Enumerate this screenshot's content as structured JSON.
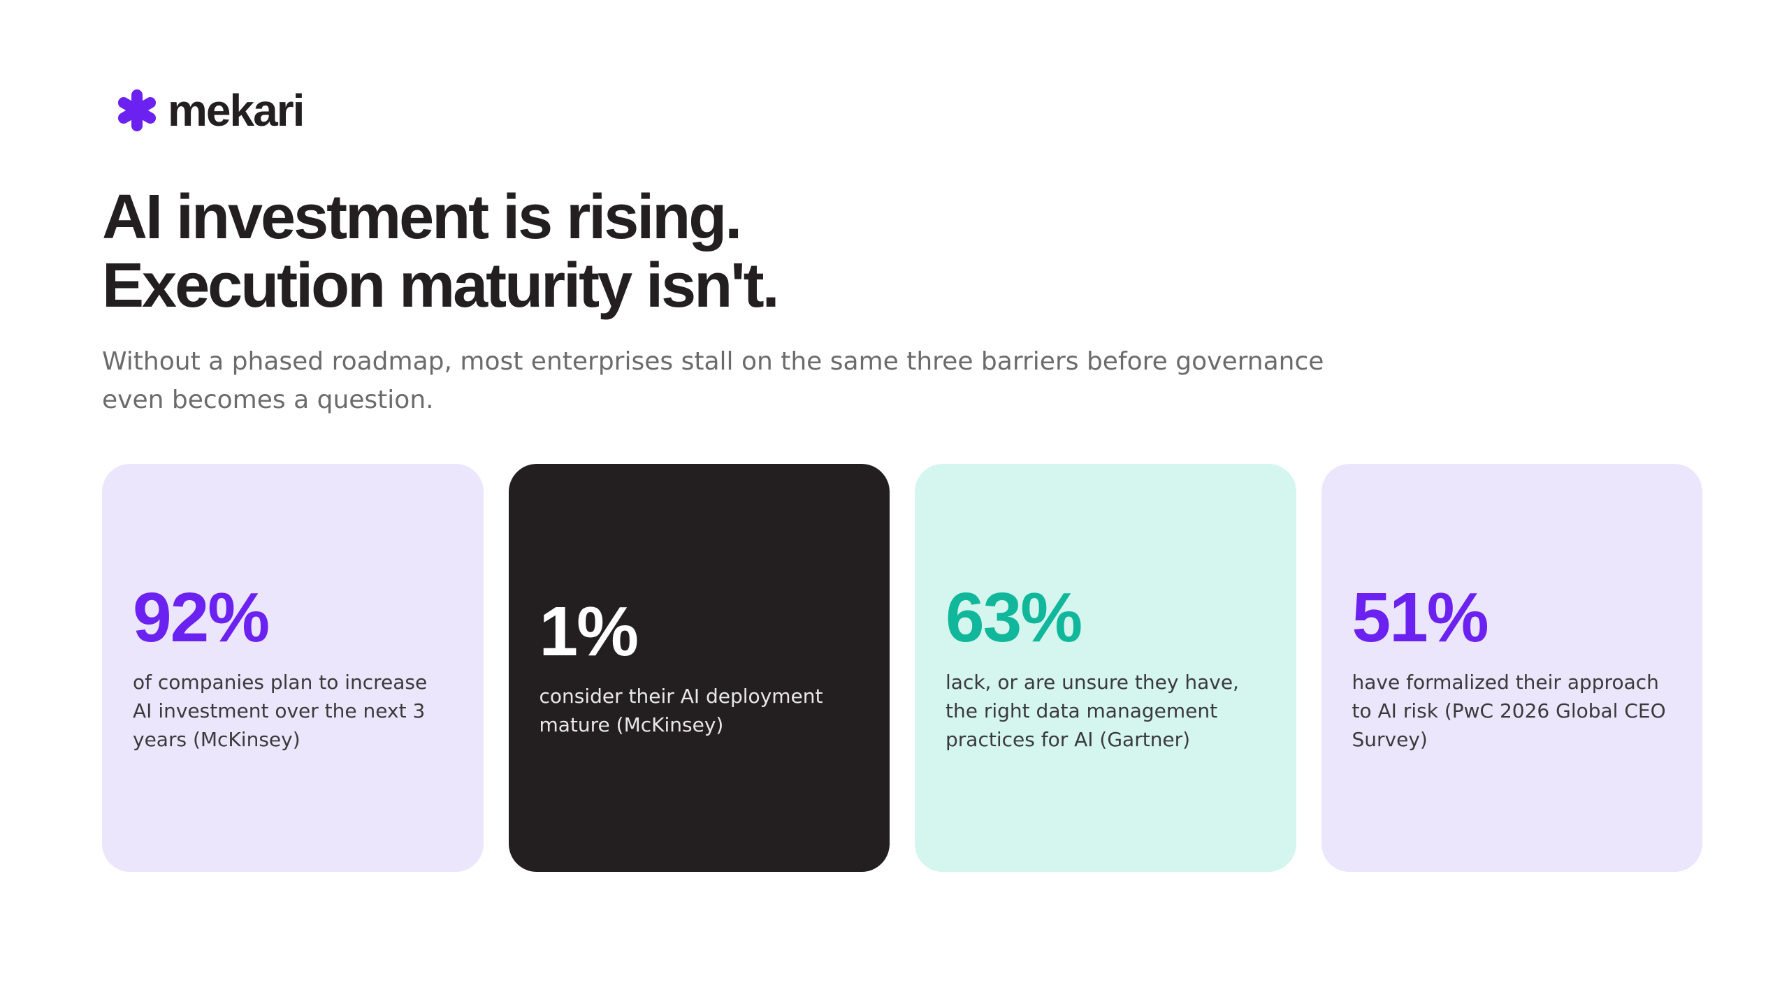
{
  "brand": {
    "logo_icon": "asterisk-star-icon",
    "name": "mekari",
    "accent_color": "#6b22f0"
  },
  "headline": {
    "line1": "AI investment is rising.",
    "line2": "Execution maturity isn't."
  },
  "subtitle": "Without a phased roadmap, most enterprises stall on the same three barriers before governance even becomes a question.",
  "stats": [
    {
      "value": "92%",
      "description": "of companies plan to increase AI investment over the next 3 years (McKinsey)",
      "background": "#ece6fd",
      "value_color": "#6b22f0"
    },
    {
      "value": "1%",
      "description": "consider their AI deployment mature (McKinsey)",
      "background": "#231f20",
      "value_color": "#ffffff"
    },
    {
      "value": "63%",
      "description": "lack, or are unsure they have, the right data management practices for AI (Gartner)",
      "background": "#d5f5ef",
      "value_color": "#10b79a"
    },
    {
      "value": "51%",
      "description": "have formalized their approach to AI risk (PwC 2026 Global CEO Survey)",
      "background": "#ece6fd",
      "value_color": "#6b22f0"
    }
  ]
}
